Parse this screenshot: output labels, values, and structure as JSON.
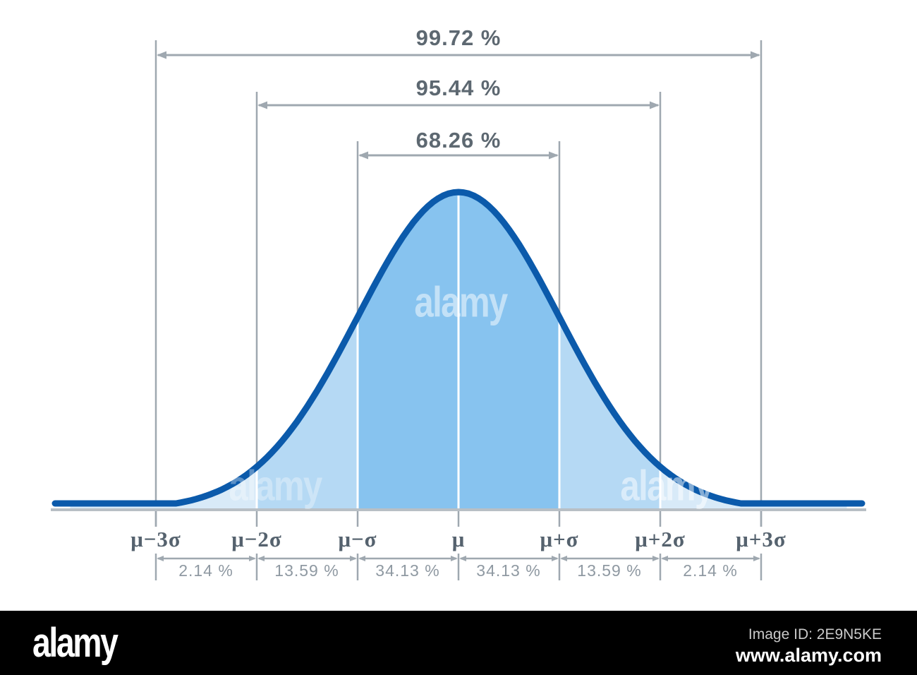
{
  "chart_data": {
    "type": "area",
    "x_labels": [
      "μ−3σ",
      "μ−2σ",
      "μ−σ",
      "μ",
      "μ+σ",
      "μ+2σ",
      "μ+3σ"
    ],
    "span_coverage": [
      {
        "label": "99.72 %",
        "value": 99.72,
        "from": "μ−3σ",
        "to": "μ+3σ"
      },
      {
        "label": "95.44 %",
        "value": 95.44,
        "from": "μ−2σ",
        "to": "μ+2σ"
      },
      {
        "label": "68.26 %",
        "value": 68.26,
        "from": "μ−σ",
        "to": "μ+σ"
      }
    ],
    "segment_coverage": [
      {
        "label": "2.14 %",
        "value": 2.14,
        "from": "μ−3σ",
        "to": "μ−2σ"
      },
      {
        "label": "13.59 %",
        "value": 13.59,
        "from": "μ−2σ",
        "to": "μ−σ"
      },
      {
        "label": "34.13 %",
        "value": 34.13,
        "from": "μ−σ",
        "to": "μ"
      },
      {
        "label": "34.13 %",
        "value": 34.13,
        "from": "μ",
        "to": "μ+σ"
      },
      {
        "label": "13.59 %",
        "value": 13.59,
        "from": "μ+σ",
        "to": "μ+2σ"
      },
      {
        "label": "2.14 %",
        "value": 2.14,
        "from": "μ+2σ",
        "to": "μ+3σ"
      }
    ],
    "colors": {
      "curve": "#0b5aab",
      "fill_center": "#87c3ef",
      "fill_mid": "#b5d9f4",
      "fill_tail": "#d8eaf8",
      "guide": "#9fa8b0",
      "axis": "#b8bfc5",
      "divider": "#ffffff"
    }
  },
  "watermark": {
    "tile_text": "alamy"
  },
  "footer": {
    "logo_text": "alamy",
    "image_id_label": "Image ID: 2E9N5KE",
    "url": "www.alamy.com"
  }
}
